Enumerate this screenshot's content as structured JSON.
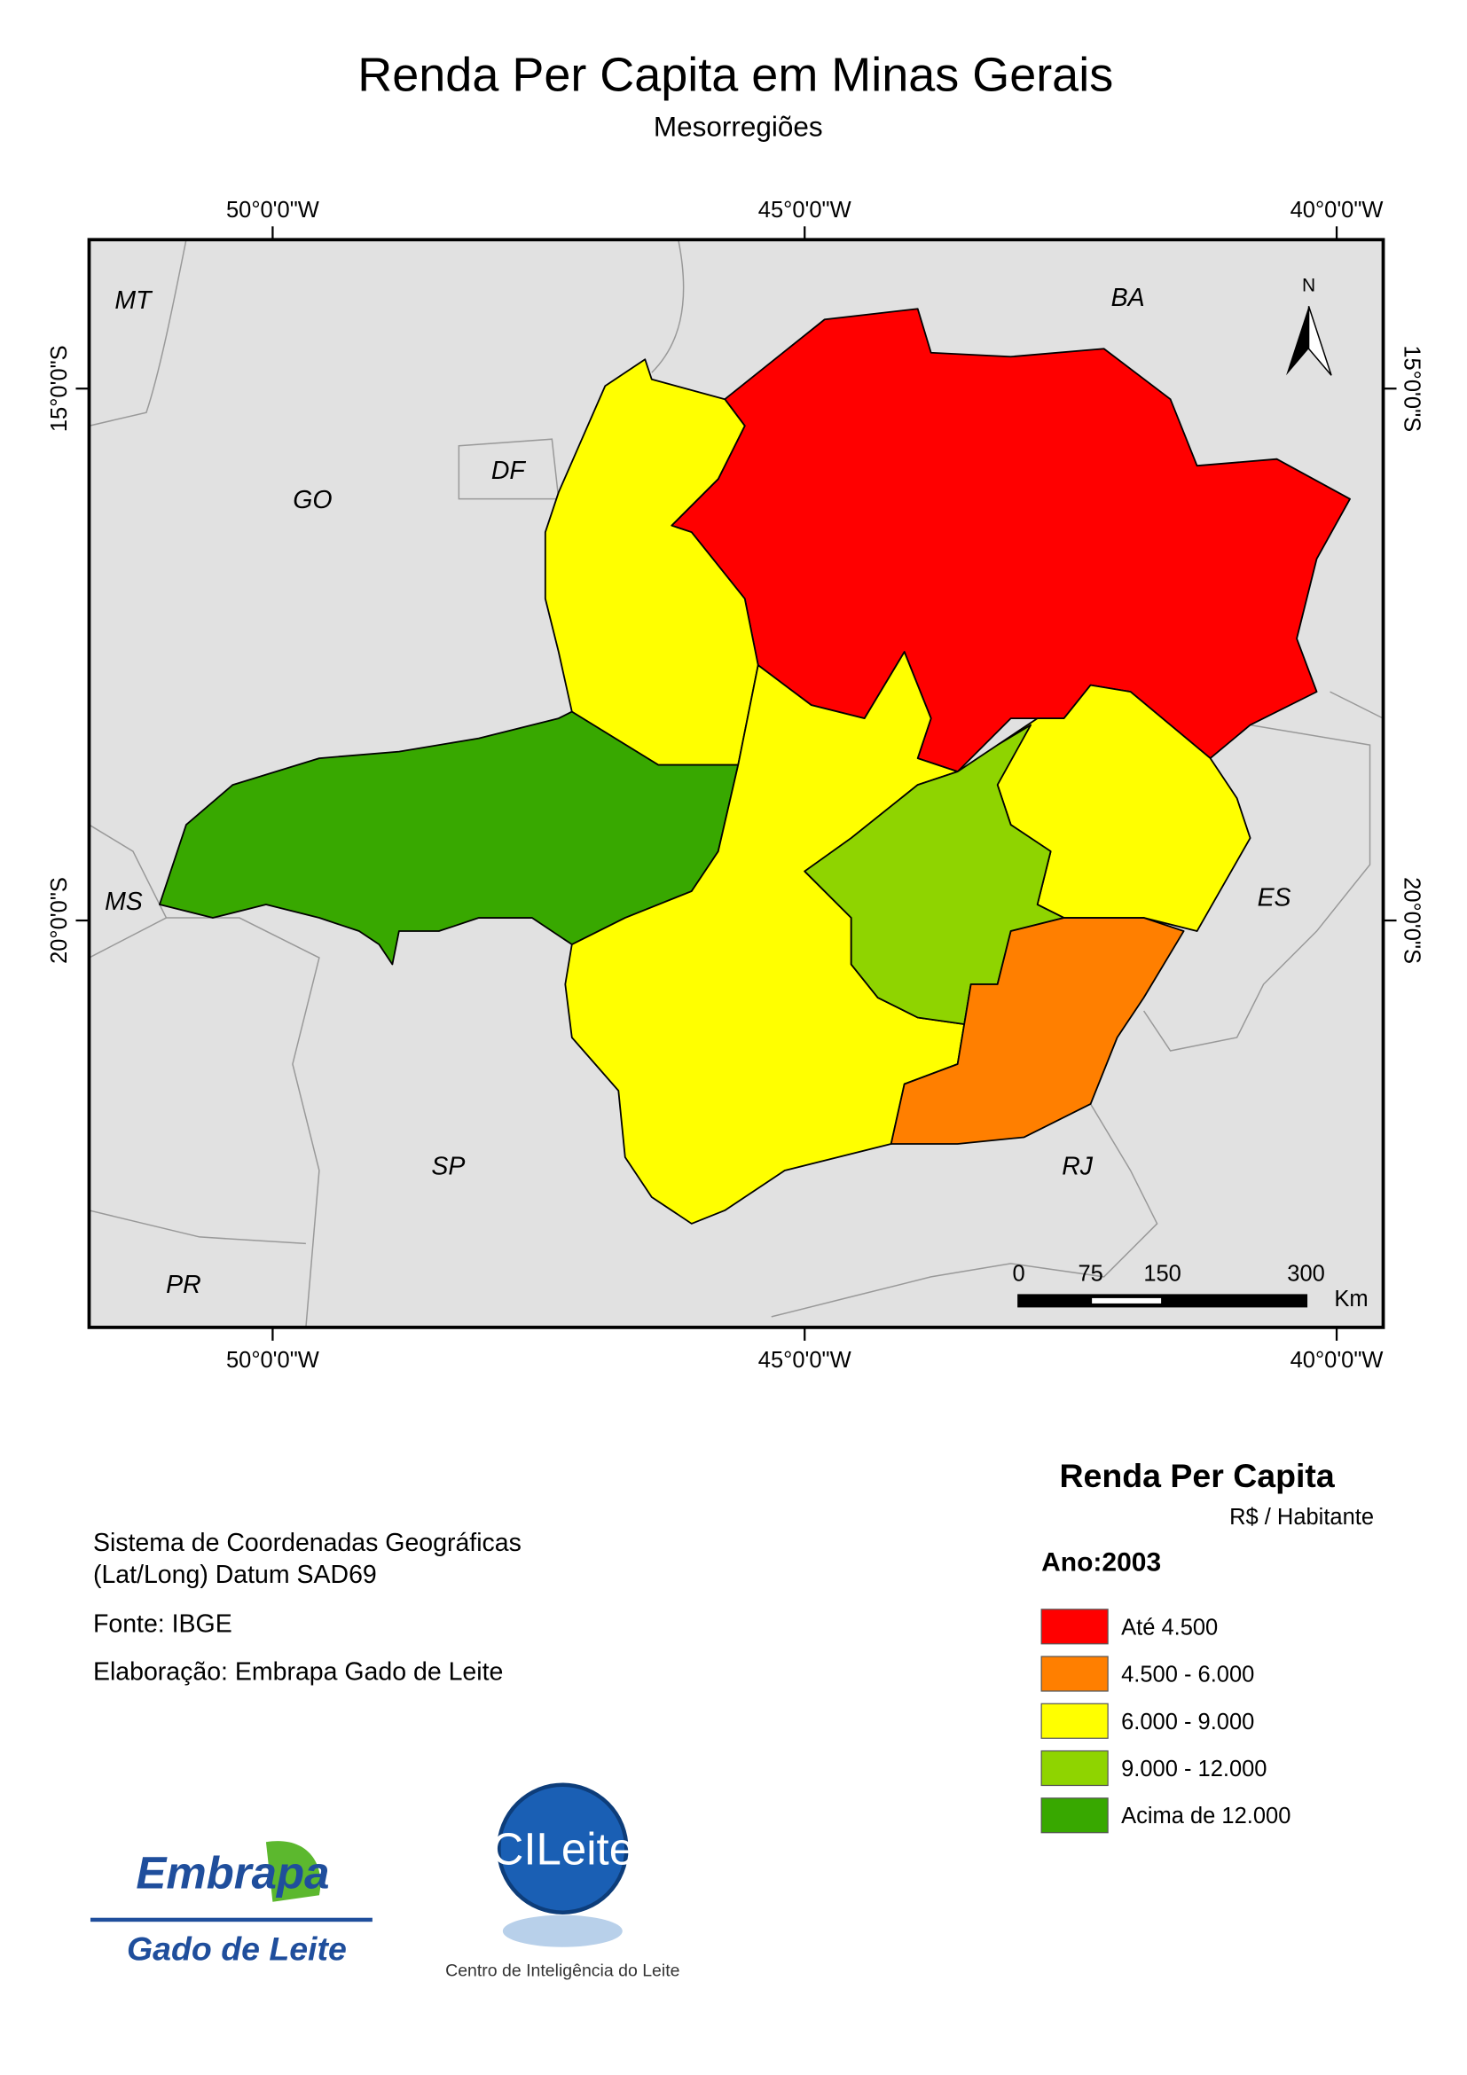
{
  "header": {
    "title": "Renda Per Capita em Minas Gerais",
    "subtitle": "Mesorregiões"
  },
  "map": {
    "graticule": {
      "lon": [
        "50°0'0\"W",
        "45°0'0\"W",
        "40°0'0\"W"
      ],
      "lat": [
        "15°0'0\"S",
        "20°0'0\"S"
      ]
    },
    "north": "N",
    "states": [
      "MT",
      "GO",
      "DF",
      "BA",
      "MS",
      "ES",
      "SP",
      "RJ",
      "PR"
    ],
    "scale_bar": {
      "labels": [
        "0",
        "75",
        "150",
        "300"
      ],
      "unit": "Km"
    }
  },
  "legend": {
    "title": "Renda Per Capita",
    "unit": "R$ / Habitante",
    "year": "Ano:2003",
    "items": [
      {
        "label": "Até 4.500",
        "color": "#ff0000"
      },
      {
        "label": "4.500 - 6.000",
        "color": "#ff7f00"
      },
      {
        "label": "6.000 - 9.000",
        "color": "#ffff00"
      },
      {
        "label": "9.000 - 12.000",
        "color": "#8fd400"
      },
      {
        "label": "Acima de 12.000",
        "color": "#38a800"
      }
    ]
  },
  "notes": [
    "Sistema de Coordenadas Geográficas",
    "(Lat/Long) Datum SAD69",
    "Fonte: IBGE",
    "Elaboração: Embrapa Gado de Leite"
  ],
  "logos": {
    "embrapa": "Embrapa",
    "embrapa_sub": "Gado de Leite",
    "cileite": "CILeite",
    "cileite_sub": "Centro de Inteligência do Leite"
  }
}
